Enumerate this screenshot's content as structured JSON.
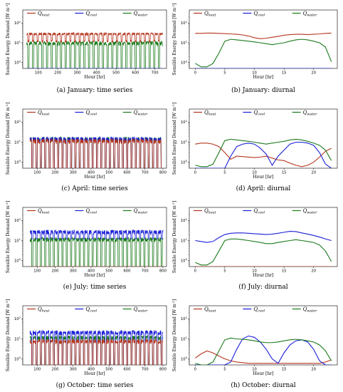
{
  "colors": {
    "heat": "#b5361e",
    "cool": "#1a1fd6",
    "water": "#1c7a1c"
  },
  "legend": {
    "heat": {
      "main": "Q",
      "sub": "heat"
    },
    "cool": {
      "main": "Q",
      "sub": "cool"
    },
    "water": {
      "main": "Q",
      "sub": "water"
    }
  },
  "axes": {
    "ylabel": "Sensible Energy Demand [W m",
    "ylabel_sup": "-2",
    "ylabel_end": "]",
    "xlabel": "Hour [hr]",
    "ytick_base": "10",
    "ytick_exps": [
      "2",
      "1",
      "0"
    ]
  },
  "chart_data": [
    {
      "id": "jan-ts",
      "caption": "(a) January: time series",
      "type": "line",
      "kind": "timeseries",
      "xlim": [
        20,
        760
      ],
      "xticks": [
        "100",
        "200",
        "300",
        "400",
        "500",
        "600",
        "700"
      ],
      "xtick_values": [
        100,
        200,
        300,
        400,
        500,
        600,
        700
      ],
      "ylim": [
        0.5,
        200
      ],
      "yscale": "log",
      "series": [
        {
          "key": "heat",
          "day": 28,
          "night": 12,
          "hours": [
            40,
            740
          ]
        },
        {
          "key": "cool",
          "day": 0,
          "night": 0,
          "hours": [
            40,
            740
          ]
        },
        {
          "key": "water",
          "day": 10,
          "night": 0,
          "hours": [
            40,
            740
          ]
        }
      ]
    },
    {
      "id": "jan-di",
      "caption": "(b) January: diurnal",
      "type": "line",
      "kind": "diurnal",
      "xlim": [
        -1,
        24
      ],
      "xticks": [
        "0",
        "5",
        "10",
        "15",
        "20"
      ],
      "xtick_values": [
        0,
        5,
        10,
        15,
        20
      ],
      "ylim": [
        0.5,
        200
      ],
      "yscale": "log",
      "series": [
        {
          "key": "heat",
          "x": [
            0,
            1,
            2,
            3,
            4,
            5,
            6,
            7,
            8,
            9,
            10,
            11,
            12,
            13,
            14,
            15,
            16,
            17,
            18,
            19,
            20,
            21,
            22,
            23
          ],
          "y": [
            30,
            30,
            31,
            31,
            30,
            29,
            28,
            27,
            25,
            22,
            18,
            16,
            17,
            19,
            21,
            24,
            26,
            27,
            27,
            26,
            27,
            28,
            30,
            31
          ]
        },
        {
          "key": "cool",
          "x": [
            0,
            23
          ],
          "y": [
            0,
            0
          ]
        },
        {
          "key": "water",
          "x": [
            0,
            1,
            2,
            3,
            4,
            5,
            6,
            7,
            8,
            9,
            10,
            11,
            12,
            13,
            14,
            15,
            16,
            17,
            18,
            19,
            20,
            21,
            22,
            23
          ],
          "y": [
            0.9,
            0.6,
            0.6,
            0.9,
            3,
            12,
            15,
            14,
            13,
            12,
            11,
            10,
            9,
            8,
            9,
            10,
            12,
            14,
            15,
            14,
            12,
            10,
            6,
            1.1
          ]
        }
      ]
    },
    {
      "id": "apr-ts",
      "caption": "(c) April: time series",
      "type": "line",
      "kind": "timeseries",
      "xlim": [
        20,
        820
      ],
      "xticks": [
        "100",
        "200",
        "300",
        "400",
        "500",
        "600",
        "700",
        "800"
      ],
      "xtick_values": [
        100,
        200,
        300,
        400,
        500,
        600,
        700,
        800
      ],
      "ylim": [
        0.5,
        200
      ],
      "yscale": "log",
      "series": [
        {
          "key": "heat",
          "day": 12,
          "night": 0,
          "hours": [
            60,
            790
          ]
        },
        {
          "key": "cool",
          "day": 15,
          "night": 0,
          "hours": [
            60,
            790
          ]
        },
        {
          "key": "water",
          "day": 15,
          "night": 0,
          "hours": [
            60,
            790
          ]
        }
      ]
    },
    {
      "id": "apr-di",
      "caption": "(d) April: diurnal",
      "type": "line",
      "kind": "diurnal",
      "xlim": [
        -1,
        24
      ],
      "xticks": [
        "0",
        "5",
        "10",
        "15",
        "20"
      ],
      "xtick_values": [
        0,
        5,
        10,
        15,
        20
      ],
      "ylim": [
        0.5,
        200
      ],
      "yscale": "log",
      "series": [
        {
          "key": "heat",
          "x": [
            0,
            1,
            2,
            3,
            4,
            5,
            6,
            7,
            8,
            9,
            10,
            11,
            12,
            13,
            14,
            15,
            16,
            17,
            18,
            19,
            20,
            21,
            22,
            23
          ],
          "y": [
            8,
            9,
            9,
            8,
            6,
            3,
            1.4,
            2,
            1.9,
            1.8,
            1.7,
            1.8,
            2,
            1.6,
            1.3,
            1.2,
            0.9,
            0.7,
            0.6,
            0.7,
            1,
            1.8,
            3.5,
            5
          ]
        },
        {
          "key": "cool",
          "x": [
            0,
            1,
            2,
            3,
            4,
            5,
            6,
            7,
            8,
            9,
            10,
            11,
            12,
            13,
            14,
            15,
            16,
            17,
            18,
            19,
            20,
            21,
            22,
            23
          ],
          "y": [
            0,
            0,
            0,
            0,
            0,
            0.5,
            2,
            6,
            8,
            9,
            8,
            5,
            2.5,
            0.7,
            2,
            4,
            8,
            10,
            10,
            9,
            7,
            3,
            0.8,
            0
          ]
        },
        {
          "key": "water",
          "x": [
            0,
            1,
            2,
            3,
            4,
            5,
            6,
            7,
            8,
            9,
            10,
            11,
            12,
            13,
            14,
            15,
            16,
            17,
            18,
            19,
            20,
            21,
            22,
            23
          ],
          "y": [
            0.7,
            0.6,
            0.6,
            0.8,
            3,
            12,
            14,
            13,
            12,
            11,
            10,
            9,
            8,
            9,
            10,
            11,
            13,
            14,
            13,
            11,
            9,
            7,
            4,
            1.2
          ]
        }
      ]
    },
    {
      "id": "jul-ts",
      "caption": "(e) July: time series",
      "type": "line",
      "kind": "timeseries",
      "xlim": [
        20,
        820
      ],
      "xticks": [
        "100",
        "200",
        "300",
        "400",
        "500",
        "600",
        "700",
        "800"
      ],
      "xtick_values": [
        100,
        200,
        300,
        400,
        500,
        600,
        700,
        800
      ],
      "ylim": [
        0.5,
        200
      ],
      "yscale": "log",
      "series": [
        {
          "key": "heat",
          "day": 0,
          "night": 0,
          "hours": [
            60,
            800
          ]
        },
        {
          "key": "cool",
          "day": 28,
          "night": 12,
          "hours": [
            60,
            800
          ]
        },
        {
          "key": "water",
          "day": 12,
          "night": 0,
          "hours": [
            60,
            800
          ]
        }
      ]
    },
    {
      "id": "jul-di",
      "caption": "(f) July: diurnal",
      "type": "line",
      "kind": "diurnal",
      "xlim": [
        -1,
        24
      ],
      "xticks": [
        "0",
        "5",
        "10",
        "15",
        "20"
      ],
      "xtick_values": [
        0,
        5,
        10,
        15,
        20
      ],
      "ylim": [
        0.5,
        200
      ],
      "yscale": "log",
      "series": [
        {
          "key": "heat",
          "x": [
            0,
            23
          ],
          "y": [
            0,
            0
          ]
        },
        {
          "key": "cool",
          "x": [
            0,
            1,
            2,
            3,
            4,
            5,
            6,
            7,
            8,
            9,
            10,
            11,
            12,
            13,
            14,
            15,
            16,
            17,
            18,
            19,
            20,
            21,
            22,
            23
          ],
          "y": [
            10,
            9,
            8,
            9,
            14,
            20,
            23,
            24,
            24,
            23,
            22,
            21,
            20,
            21,
            23,
            26,
            29,
            28,
            24,
            21,
            18,
            15,
            12,
            10
          ]
        },
        {
          "key": "water",
          "x": [
            0,
            1,
            2,
            3,
            4,
            5,
            6,
            7,
            8,
            9,
            10,
            11,
            12,
            13,
            14,
            15,
            16,
            17,
            18,
            19,
            20,
            21,
            22,
            23
          ],
          "y": [
            0.8,
            0.6,
            0.6,
            0.9,
            3,
            10,
            12,
            12,
            11,
            10,
            9,
            8,
            7,
            7,
            8,
            9,
            10,
            11,
            10,
            9,
            8,
            6,
            3,
            0.9
          ]
        }
      ]
    },
    {
      "id": "oct-ts",
      "caption": "(g) October: time series",
      "type": "line",
      "kind": "timeseries",
      "xlim": [
        20,
        820
      ],
      "xticks": [
        "100",
        "200",
        "300",
        "400",
        "500",
        "600",
        "700",
        "800"
      ],
      "xtick_values": [
        100,
        200,
        300,
        400,
        500,
        600,
        700,
        800
      ],
      "ylim": [
        0.5,
        200
      ],
      "yscale": "log",
      "series": [
        {
          "key": "heat",
          "day": 8,
          "night": 0,
          "hours": [
            60,
            800
          ]
        },
        {
          "key": "cool",
          "day": 22,
          "night": 0,
          "hours": [
            60,
            800
          ]
        },
        {
          "key": "water",
          "day": 12,
          "night": 0,
          "hours": [
            60,
            800
          ]
        }
      ]
    },
    {
      "id": "oct-di",
      "caption": "(h) October: diurnal",
      "type": "line",
      "kind": "diurnal",
      "xlim": [
        -1,
        24
      ],
      "xticks": [
        "0",
        "5",
        "10",
        "15",
        "20"
      ],
      "xtick_values": [
        0,
        5,
        10,
        15,
        20
      ],
      "ylim": [
        0.5,
        200
      ],
      "yscale": "log",
      "series": [
        {
          "key": "heat",
          "x": [
            0,
            1,
            2,
            3,
            4,
            5,
            6,
            7,
            8,
            9,
            10,
            11,
            12,
            13,
            14,
            15,
            16,
            17,
            18,
            19,
            20,
            21,
            22,
            23
          ],
          "y": [
            1.1,
            1.8,
            2.5,
            2,
            1.4,
            1,
            0.8,
            0.7,
            0.65,
            0.6,
            0.6,
            0.6,
            0.6,
            0.6,
            0.6,
            0.6,
            0.6,
            0.6,
            0.6,
            0.6,
            0.6,
            0.6,
            0.7,
            0.9
          ]
        },
        {
          "key": "cool",
          "x": [
            0,
            1,
            2,
            3,
            4,
            5,
            6,
            7,
            8,
            9,
            10,
            11,
            12,
            13,
            14,
            15,
            16,
            17,
            18,
            19,
            20,
            21,
            22,
            23
          ],
          "y": [
            0.5,
            0,
            0,
            0,
            0,
            0,
            0.7,
            3,
            10,
            14,
            12,
            7,
            3,
            1,
            0.6,
            2,
            5,
            8,
            9,
            7,
            3,
            0.8,
            0,
            0
          ]
        },
        {
          "key": "water",
          "x": [
            0,
            1,
            2,
            3,
            4,
            5,
            6,
            7,
            8,
            9,
            10,
            11,
            12,
            13,
            14,
            15,
            16,
            17,
            18,
            19,
            20,
            21,
            22,
            23
          ],
          "y": [
            0.6,
            0.5,
            0.5,
            0.7,
            2.5,
            9,
            11,
            10,
            9.5,
            9,
            8,
            7,
            6.5,
            6.5,
            7,
            8,
            9,
            9.5,
            9,
            8,
            7,
            5,
            2.5,
            0.8
          ]
        }
      ]
    }
  ]
}
